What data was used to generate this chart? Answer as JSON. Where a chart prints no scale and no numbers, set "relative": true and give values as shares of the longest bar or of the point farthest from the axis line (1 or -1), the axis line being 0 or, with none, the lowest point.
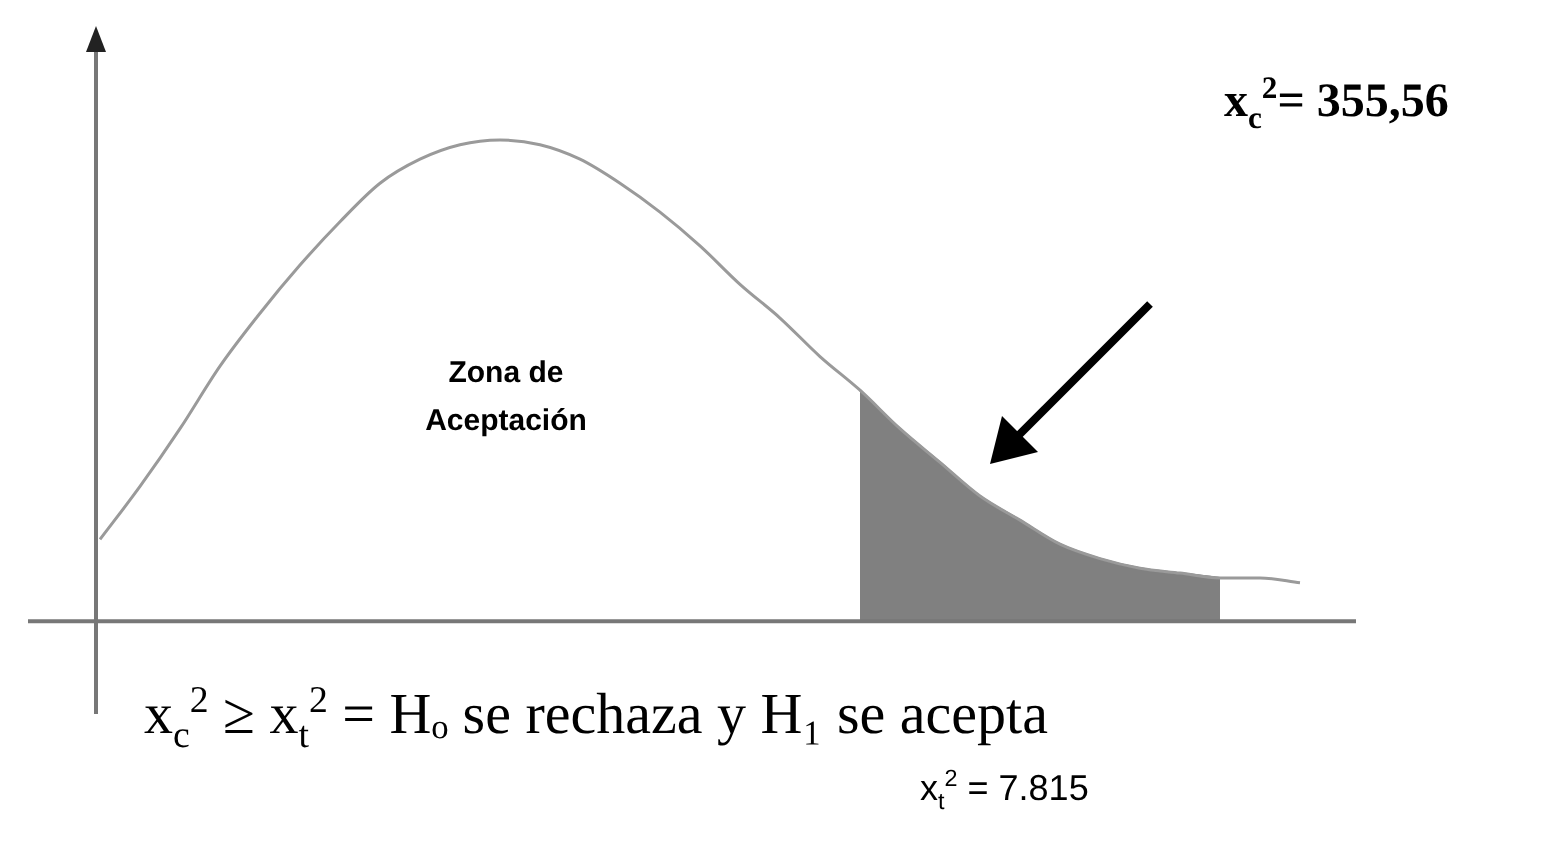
{
  "chart_data": {
    "type": "line",
    "relative": true,
    "categories": [
      null,
      null,
      null,
      null,
      null,
      null,
      null,
      null,
      null,
      null,
      null,
      null,
      null,
      null,
      null,
      null,
      null,
      null,
      null,
      null,
      null,
      null,
      null,
      null,
      null,
      null,
      null,
      null,
      null,
      null,
      null
    ],
    "series": [
      {
        "type": "line",
        "color": "#9a9a9a",
        "values": [
          0.17,
          0.28,
          0.4,
          0.53,
          0.64,
          0.74,
          0.83,
          0.91,
          0.96,
          0.99,
          1,
          0.99,
          0.96,
          0.91,
          0.85,
          0.78,
          0.7,
          0.63,
          0.55,
          0.48,
          0.4,
          0.33,
          0.26,
          0.21,
          0.16,
          0.13,
          0.11,
          0.1,
          0.09,
          0.09,
          0.08
        ]
      },
      {
        "type": "area",
        "color": "#808080",
        "values": [
          null,
          null,
          null,
          null,
          null,
          null,
          null,
          null,
          null,
          null,
          null,
          null,
          null,
          null,
          null,
          null,
          null,
          null,
          null,
          0.48,
          0.4,
          0.33,
          0.26,
          0.21,
          0.16,
          0.13,
          0.11,
          0.1,
          0.09,
          null,
          null
        ]
      }
    ],
    "annotations": [
      "Zona de Aceptación",
      "x$_{c}$$^{2}$= 355,56",
      "x$_{c}$$^{2}$ ≥ x$_{t}$$^{2}$ = Hₒ se rechaza  y H₁ se acepta",
      "x$_{t}$$^{2}$ = 7.815"
    ],
    "legend": false,
    "marker": "none",
    "line_style": "solid"
  }
}
